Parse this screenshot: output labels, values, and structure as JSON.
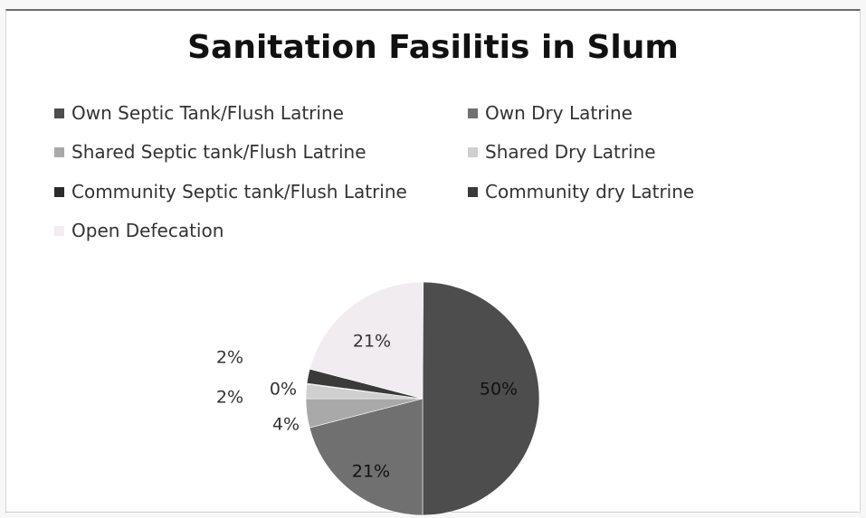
{
  "chart_data": {
    "type": "pie",
    "title": "Sanitation Fasilitis in Slum",
    "legend_position": "top",
    "slices": [
      {
        "label": "Own Septic Tank/Flush Latrine",
        "value": 50,
        "display": "50%",
        "color": "#4d4d4d"
      },
      {
        "label": "Own Dry Latrine",
        "value": 21,
        "display": "21%",
        "color": "#707070"
      },
      {
        "label": "Shared Septic tank/Flush Latrine",
        "value": 4,
        "display": "4%",
        "color": "#a9a9a9"
      },
      {
        "label": "Shared Dry Latrine",
        "value": 2,
        "display": "2%",
        "color": "#cfcfcf"
      },
      {
        "label": "Community Septic tank/Flush Latrine",
        "value": 0,
        "display": "0%",
        "color": "#2b2b2b"
      },
      {
        "label": "Community dry Latrine",
        "value": 2,
        "display": "2%",
        "color": "#3a3a3a"
      },
      {
        "label": "Open Defecation",
        "value": 21,
        "display": "21%",
        "color": "#f0ecf0"
      }
    ]
  }
}
